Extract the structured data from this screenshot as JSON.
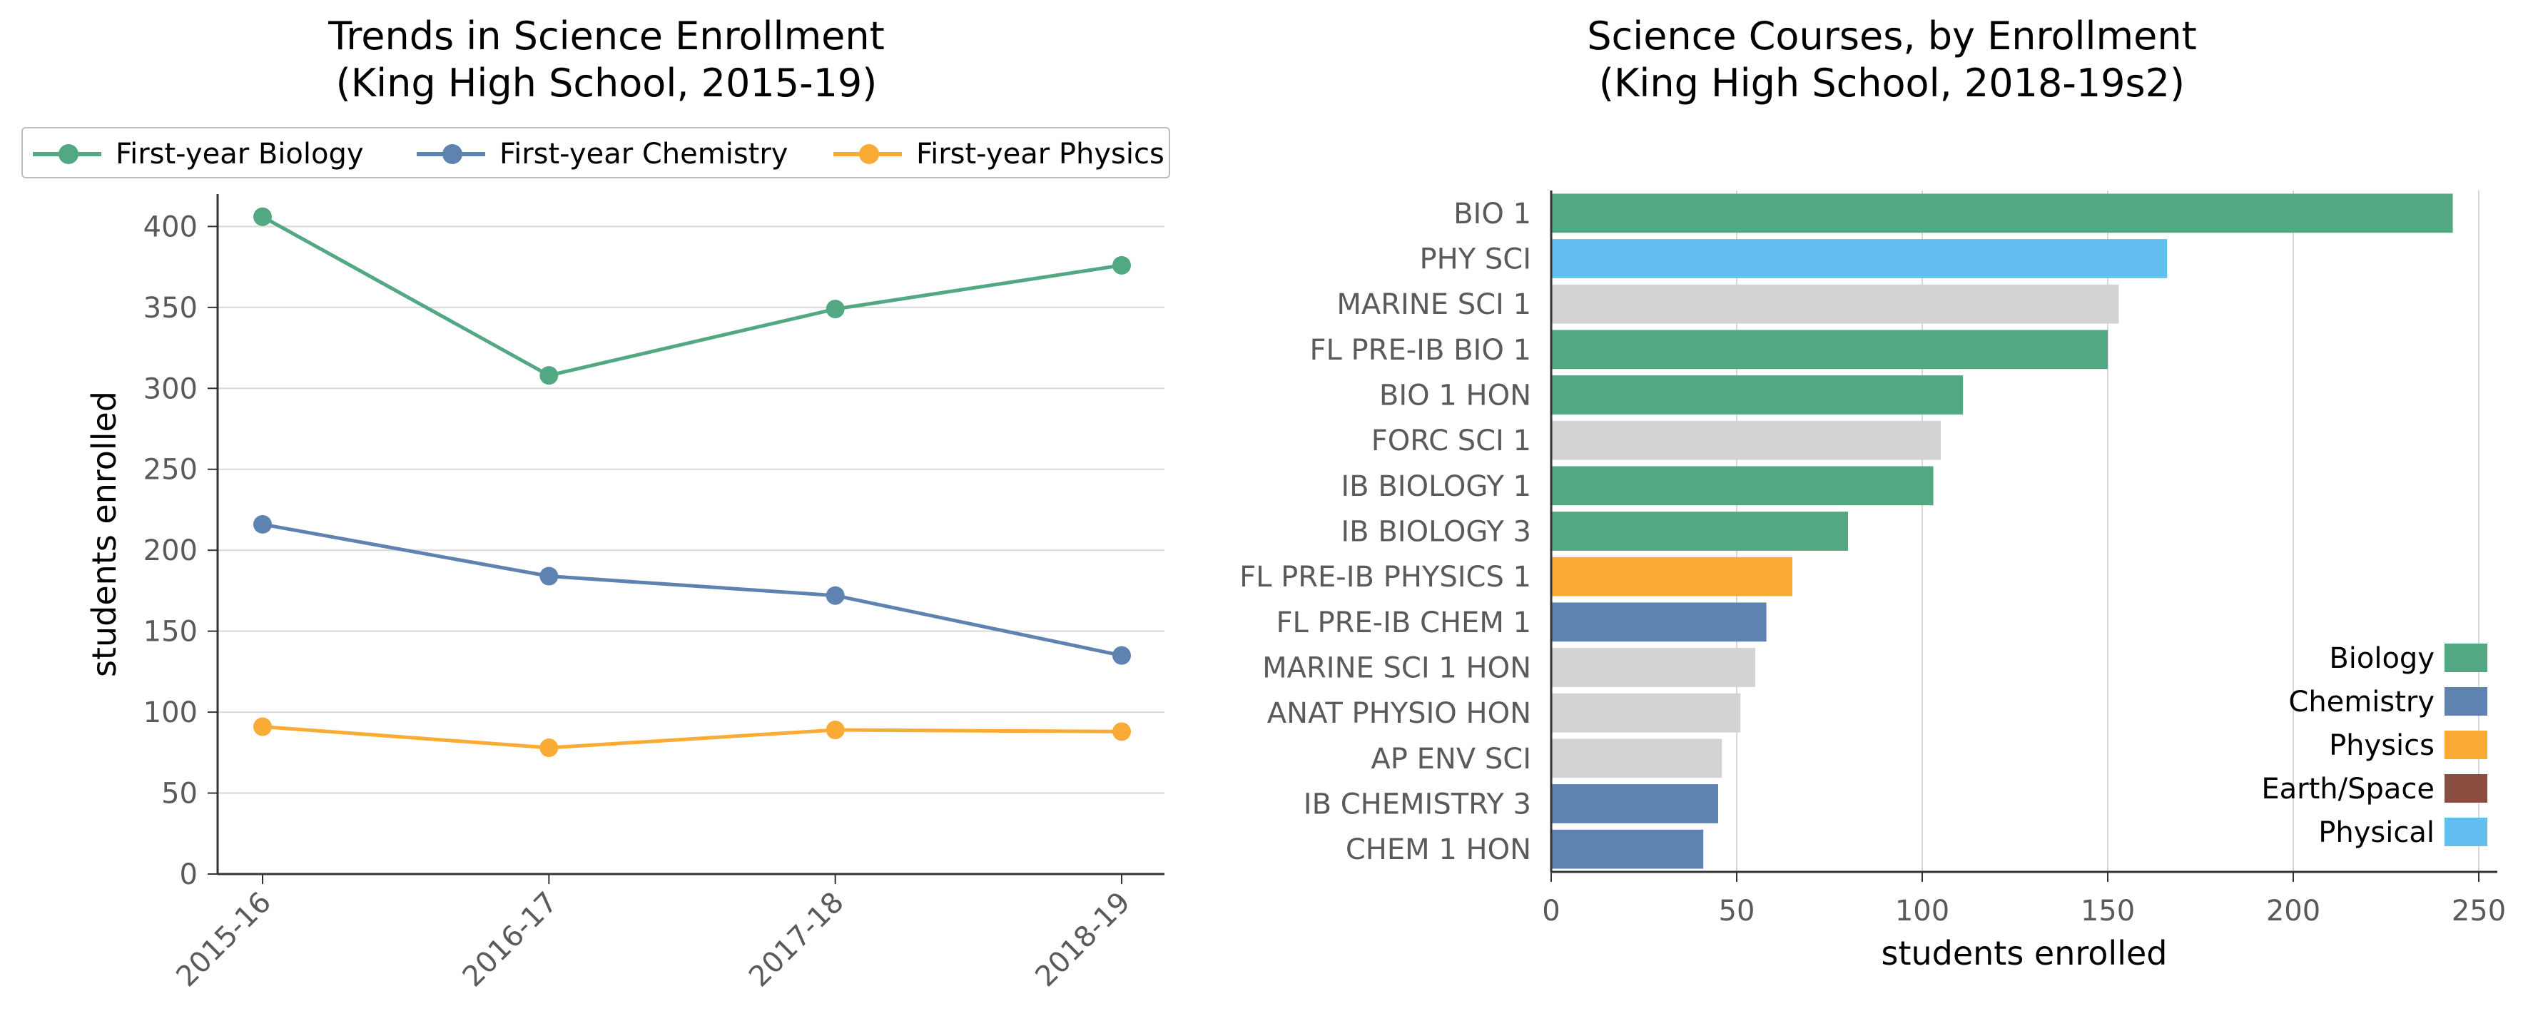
{
  "colors": {
    "biology": "#52a882",
    "chemistry": "#5f83b1",
    "physics": "#faab36",
    "earth_space": "#8a4f40",
    "physical": "#63bff0",
    "other": "#d3d3d3",
    "axis": "#333333",
    "grid": "#d8d8d8",
    "tick_text": "#5a5a5a"
  },
  "chart_data": [
    {
      "type": "line",
      "title_line1": "Trends in Science Enrollment",
      "title_line2": "(King High School, 2015-19)",
      "xlabel": "",
      "ylabel": "students enrolled",
      "x": [
        "2015-16",
        "2016-17",
        "2017-18",
        "2018-19"
      ],
      "ylim": [
        0,
        420
      ],
      "yticks": [
        0,
        50,
        100,
        150,
        200,
        250,
        300,
        350,
        400
      ],
      "grid": "horizontal",
      "legend_position": "top",
      "series": [
        {
          "name": "First-year Biology",
          "color": "#52a882",
          "values": [
            406,
            308,
            349,
            376
          ]
        },
        {
          "name": "First-year Chemistry",
          "color": "#5f83b1",
          "values": [
            216,
            184,
            172,
            135
          ]
        },
        {
          "name": "First-year Physics",
          "color": "#faab36",
          "values": [
            91,
            78,
            89,
            88
          ]
        }
      ]
    },
    {
      "type": "bar",
      "orientation": "horizontal",
      "title_line1": "Science Courses, by Enrollment",
      "title_line2": "(King High School, 2018-19s2)",
      "xlabel": "students enrolled",
      "ylabel": "",
      "xlim": [
        0,
        255
      ],
      "xticks": [
        0,
        50,
        100,
        150,
        200,
        250
      ],
      "grid": "vertical",
      "legend_position": "bottom-right",
      "categories": [
        "BIO 1",
        "PHY SCI",
        "MARINE SCI 1",
        "FL PRE-IB BIO 1",
        "BIO 1 HON",
        "FORC SCI 1",
        "IB BIOLOGY 1",
        "IB BIOLOGY 3",
        "FL PRE-IB PHYSICS 1",
        "FL PRE-IB CHEM 1",
        "MARINE SCI 1 HON",
        "ANAT PHYSIO HON",
        "AP ENV SCI",
        "IB CHEMISTRY 3",
        "CHEM 1 HON"
      ],
      "values": [
        243,
        166,
        153,
        150,
        111,
        105,
        103,
        80,
        65,
        58,
        55,
        51,
        46,
        45,
        41
      ],
      "bar_groups": [
        "biology",
        "physical",
        "other",
        "biology",
        "biology",
        "other",
        "biology",
        "biology",
        "physics",
        "chemistry",
        "other",
        "other",
        "other",
        "chemistry",
        "chemistry"
      ],
      "legend": [
        {
          "label": "Biology",
          "key": "biology"
        },
        {
          "label": "Chemistry",
          "key": "chemistry"
        },
        {
          "label": "Physics",
          "key": "physics"
        },
        {
          "label": "Earth/Space",
          "key": "earth_space"
        },
        {
          "label": "Physical",
          "key": "physical"
        }
      ]
    }
  ]
}
